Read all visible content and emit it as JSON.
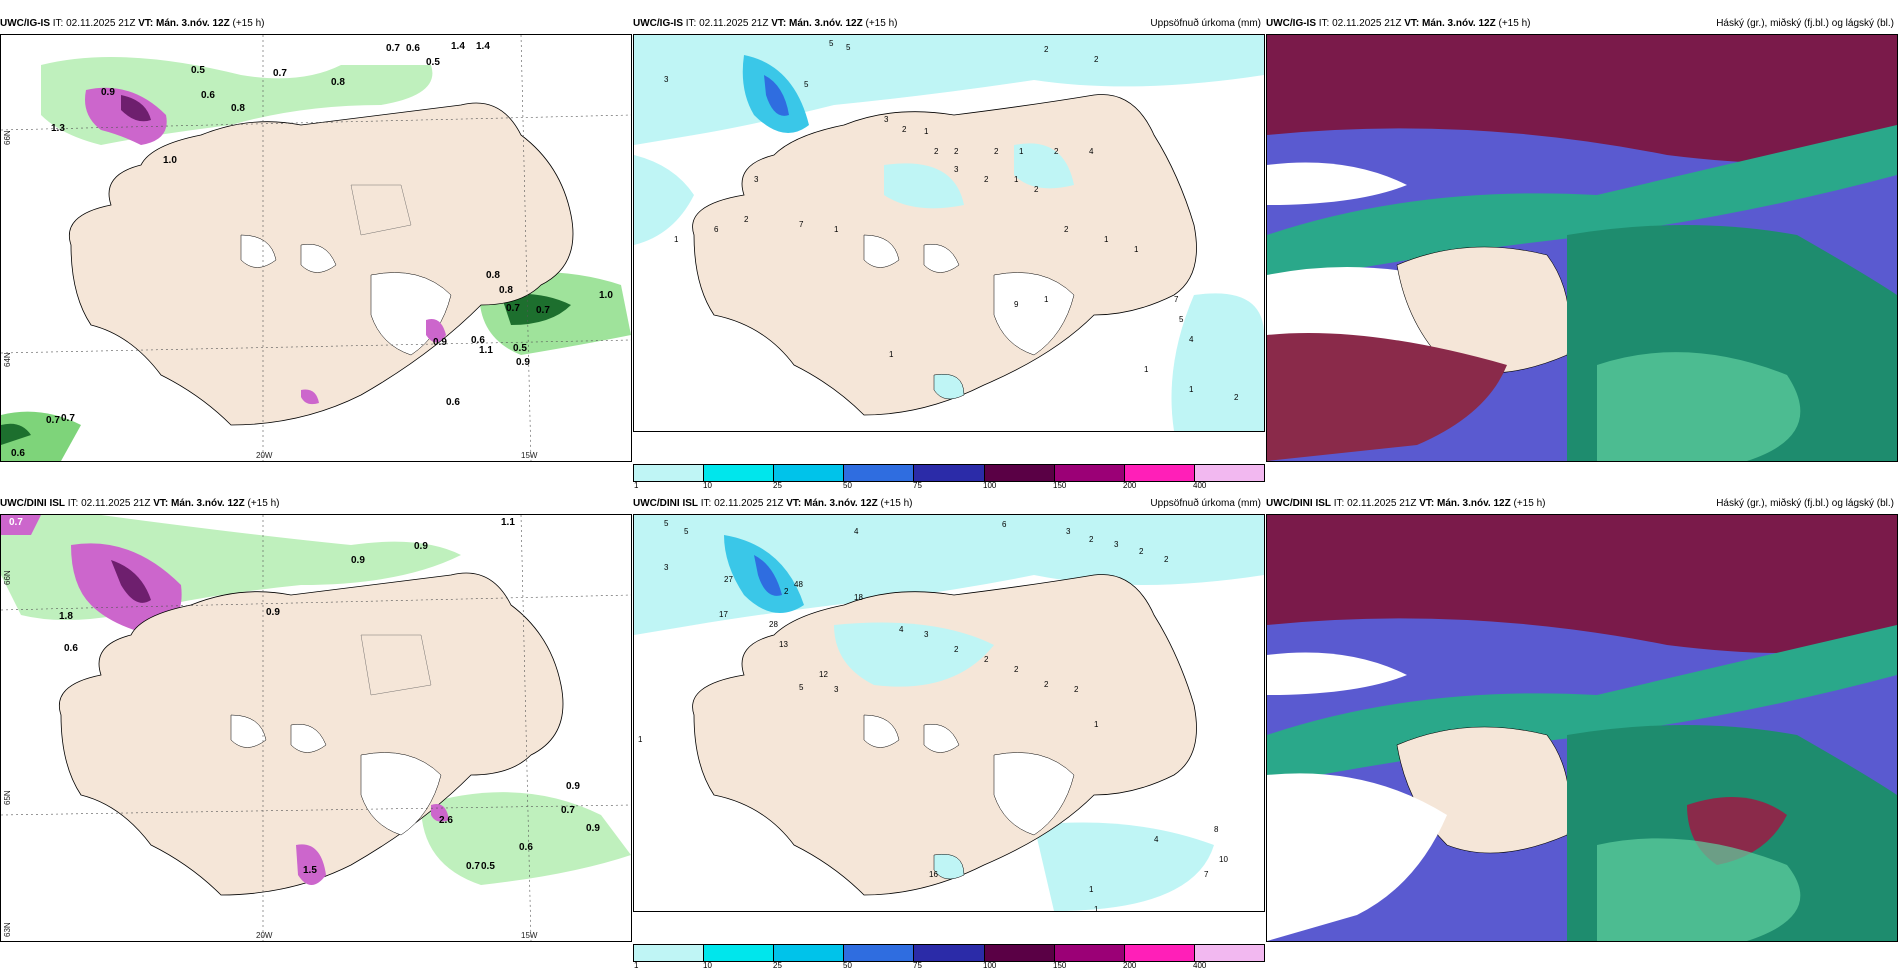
{
  "rows": [
    {
      "model": "UWC/IG-IS",
      "it": "IT: 02.11.2025 21Z",
      "vt": "VT: Mán. 3.nóv. 12Z",
      "lead": "(+15 h)"
    },
    {
      "model": "UWC/DINI ISL",
      "it": "IT: 02.11.2025 21Z",
      "vt": "VT: Mán. 3.nóv. 12Z",
      "lead": "(+15 h)"
    }
  ],
  "precip_title": "Uppsöfnuð úrkoma (mm)",
  "cloud_title": "Háský (gr.), miðský (fj.bl.) og lágský (bl.)",
  "colorbar": {
    "labels": [
      "1",
      "10",
      "25",
      "50",
      "75",
      "100",
      "150",
      "200",
      "400"
    ],
    "colors": [
      "#bff5f5",
      "#00e6ec",
      "#00c3ea",
      "#2f6de0",
      "#2b2ba8",
      "#5a0045",
      "#9b0076",
      "#ff1fb8",
      "#f2b8f0"
    ]
  },
  "axis": {
    "lon_20w": "20W",
    "lon_15w": "15W",
    "lat_66n": "66N",
    "lat_64n": "64N",
    "lat_65n": "65N",
    "lat_63n": "63N"
  },
  "left_top_labels": [
    "0.7",
    "0.6",
    "1.4",
    "1.4",
    "0.5",
    "0.7",
    "0.8",
    "0.8",
    "0.5",
    "0.6",
    "1.0",
    "1.3",
    "0.9",
    "0.8",
    "0.8",
    "0.7",
    "1.0",
    "0.7",
    "0.6",
    "0.9",
    "1.1",
    "0.5",
    "0.9",
    "0.6",
    "0.7",
    "0.7",
    "0.6"
  ],
  "left_bottom_labels": [
    "0.7",
    "1.1",
    "0.9",
    "0.9",
    "1.8",
    "0.6",
    "0.9",
    "2.6",
    "0.7",
    "0.9",
    "0.6",
    "0.5",
    "0.7",
    "0.9",
    "1.5"
  ],
  "precip_top_labels": [
    "5",
    "5",
    "3",
    "2",
    "2",
    "5",
    "3",
    "2",
    "1",
    "2",
    "2",
    "2",
    "1",
    "2",
    "4",
    "3",
    "2",
    "1",
    "2",
    "7",
    "2",
    "1",
    "1",
    "1",
    "1",
    "2",
    "6",
    "3",
    "1",
    "9",
    "1",
    "7",
    "5",
    "4",
    "1",
    "1",
    "2"
  ],
  "precip_bottom_labels": [
    "5",
    "5",
    "3",
    "4",
    "6",
    "3",
    "2",
    "3",
    "2",
    "2",
    "18",
    "27",
    "17",
    "2",
    "48",
    "28",
    "13",
    "12",
    "5",
    "3",
    "1",
    "4",
    "3",
    "2",
    "2",
    "2",
    "2",
    "2",
    "1",
    "8",
    "4",
    "10",
    "7",
    "16",
    "1",
    "1"
  ]
}
